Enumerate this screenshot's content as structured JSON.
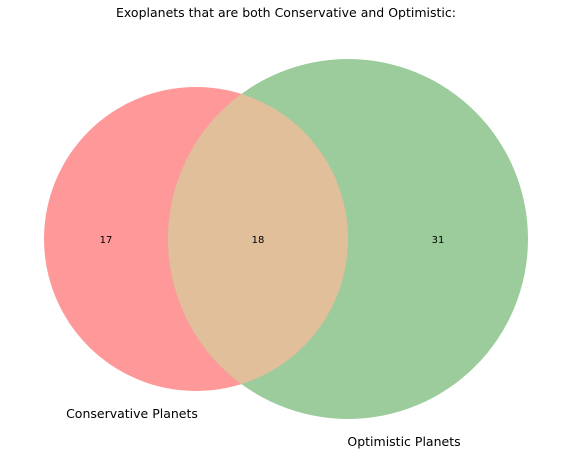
{
  "title": "Exoplanets that are both Conservative and Optimistic:",
  "chart_data": {
    "type": "venn",
    "sets": [
      {
        "name": "Conservative Planets",
        "only_count": "17",
        "color": "#ff9999"
      },
      {
        "name": "Optimistic Planets",
        "only_count": "31",
        "color": "#9ccc9c"
      }
    ],
    "intersection": {
      "count": "18",
      "color": "#e1bf9b"
    }
  }
}
